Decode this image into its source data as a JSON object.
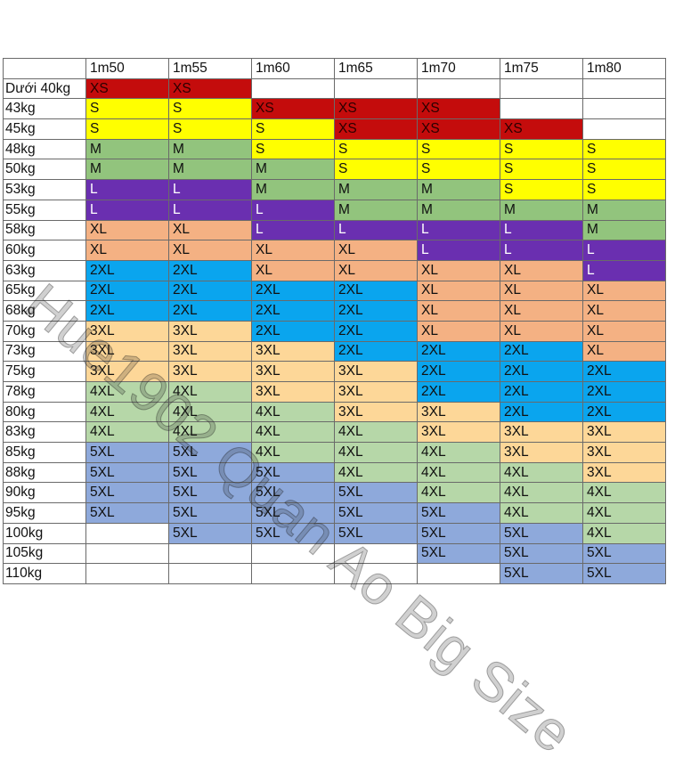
{
  "header": {
    "corner": "",
    "heights": [
      "1m50",
      "1m55",
      "1m60",
      "1m65",
      "1m70",
      "1m75",
      "1m80"
    ]
  },
  "rows": [
    {
      "weight": "Dưới 40kg",
      "sizes": [
        "XS",
        "XS",
        "",
        "",
        "",
        "",
        ""
      ]
    },
    {
      "weight": "43kg",
      "sizes": [
        "S",
        "S",
        "XS",
        "XS",
        "XS",
        "",
        ""
      ]
    },
    {
      "weight": "45kg",
      "sizes": [
        "S",
        "S",
        "S",
        "XS",
        "XS",
        "XS",
        ""
      ]
    },
    {
      "weight": "48kg",
      "sizes": [
        "M",
        "M",
        "S",
        "S",
        "S",
        "S",
        "S"
      ]
    },
    {
      "weight": "50kg",
      "sizes": [
        "M",
        "M",
        "M",
        "S",
        "S",
        "S",
        "S"
      ]
    },
    {
      "weight": "53kg",
      "sizes": [
        "L",
        "L",
        "M",
        "M",
        "M",
        "S",
        "S"
      ]
    },
    {
      "weight": "55kg",
      "sizes": [
        "L",
        "L",
        "L",
        "M",
        "M",
        "M",
        "M"
      ]
    },
    {
      "weight": "58kg",
      "sizes": [
        "XL",
        "XL",
        "L",
        "L",
        "L",
        "L",
        "M"
      ]
    },
    {
      "weight": "60kg",
      "sizes": [
        "XL",
        "XL",
        "XL",
        "XL",
        "L",
        "L",
        "L"
      ]
    },
    {
      "weight": "63kg",
      "sizes": [
        "2XL",
        "2XL",
        "XL",
        "XL",
        "XL",
        "XL",
        "L"
      ]
    },
    {
      "weight": "65kg",
      "sizes": [
        "2XL",
        "2XL",
        "2XL",
        "2XL",
        "XL",
        "XL",
        "XL"
      ]
    },
    {
      "weight": "68kg",
      "sizes": [
        "2XL",
        "2XL",
        "2XL",
        "2XL",
        "XL",
        "XL",
        "XL"
      ]
    },
    {
      "weight": "70kg",
      "sizes": [
        "3XL",
        "3XL",
        "2XL",
        "2XL",
        "XL",
        "XL",
        "XL"
      ]
    },
    {
      "weight": "73kg",
      "sizes": [
        "3XL",
        "3XL",
        "3XL",
        "2XL",
        "2XL",
        "2XL",
        "XL"
      ]
    },
    {
      "weight": "75kg",
      "sizes": [
        "3XL",
        "3XL",
        "3XL",
        "3XL",
        "2XL",
        "2XL",
        "2XL"
      ]
    },
    {
      "weight": "78kg",
      "sizes": [
        "4XL",
        "4XL",
        "3XL",
        "3XL",
        "2XL",
        "2XL",
        "2XL"
      ]
    },
    {
      "weight": "80kg",
      "sizes": [
        "4XL",
        "4XL",
        "4XL",
        "3XL",
        "3XL",
        "2XL",
        "2XL"
      ]
    },
    {
      "weight": "83kg",
      "sizes": [
        "4XL",
        "4XL",
        "4XL",
        "4XL",
        "3XL",
        "3XL",
        "3XL"
      ]
    },
    {
      "weight": "85kg",
      "sizes": [
        "5XL",
        "5XL",
        "4XL",
        "4XL",
        "4XL",
        "3XL",
        "3XL"
      ]
    },
    {
      "weight": "88kg",
      "sizes": [
        "5XL",
        "5XL",
        "5XL",
        "4XL",
        "4XL",
        "4XL",
        "3XL"
      ]
    },
    {
      "weight": "90kg",
      "sizes": [
        "5XL",
        "5XL",
        "5XL",
        "5XL",
        "4XL",
        "4XL",
        "4XL"
      ]
    },
    {
      "weight": "95kg",
      "sizes": [
        "5XL",
        "5XL",
        "5XL",
        "5XL",
        "5XL",
        "4XL",
        "4XL"
      ]
    },
    {
      "weight": "100kg",
      "sizes": [
        "",
        "5XL",
        "5XL",
        "5XL",
        "5XL",
        "5XL",
        "4XL"
      ]
    },
    {
      "weight": "105kg",
      "sizes": [
        "",
        "",
        "",
        "",
        "5XL",
        "5XL",
        "5XL"
      ]
    },
    {
      "weight": "110kg",
      "sizes": [
        "",
        "",
        "",
        "",
        "",
        "5XL",
        "5XL"
      ]
    }
  ],
  "watermark": "Hue1902 Quan Ao Big Size",
  "colors": {
    "XS": "#c40c0c",
    "S": "#ffff00",
    "M": "#92c47d",
    "L": "#6a2fb0",
    "XL": "#f4b183",
    "2XL": "#0aa5ee",
    "3XL": "#fdd798",
    "4XL": "#b6d7a8",
    "5XL": "#8ea9db"
  }
}
